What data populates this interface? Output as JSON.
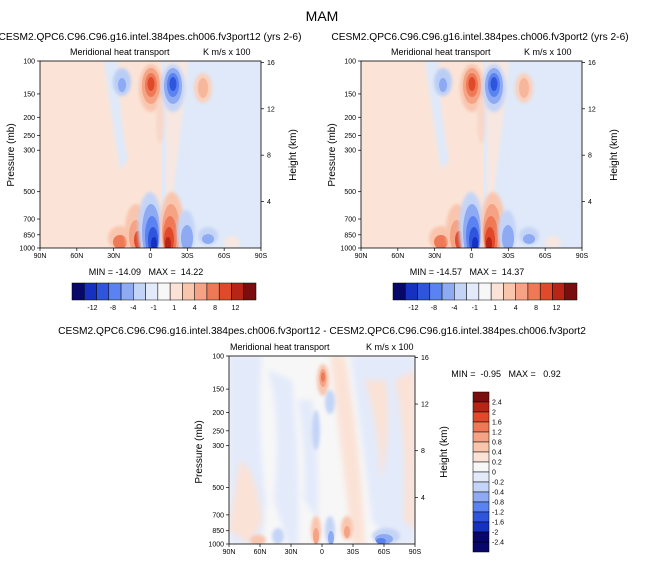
{
  "page": {
    "title": "MAM"
  },
  "panels": [
    {
      "title": "CESM2.QPC6.C96.C96.g16.intel.384pes.ch006.fv3port12 (yrs 2-6)",
      "left_label": "Meridional heat transport",
      "right_label": "K m/s x 100",
      "stats": "MIN = -14.09   MAX =  14.22",
      "label_bar": {
        "ticks": [
          "-12",
          "-8",
          "-4",
          "-1",
          "1",
          "4",
          "8",
          "12"
        ]
      }
    },
    {
      "title": "CESM2.QPC6.C96.C96.g16.intel.384pes.ch006.fv3port2 (yrs 2-6)",
      "left_label": "Meridional heat transport",
      "right_label": "K m/s x 100",
      "stats": "MIN = -14.57   MAX =  14.37",
      "label_bar": {
        "ticks": [
          "-12",
          "-8",
          "-4",
          "-1",
          "1",
          "4",
          "8",
          "12"
        ]
      }
    },
    {
      "title": "CESM2.QPC6.C96.C96.g16.intel.384pes.ch006.fv3port12 - CESM2.QPC6.C96.C96.g16.intel.384pes.ch006.fv3port2",
      "left_label": "Meridional heat transport",
      "right_label": "K m/s x 100",
      "stats": "MIN =  -0.95   MAX =   0.92",
      "label_bar": {
        "ticks": [
          "2.4",
          "2",
          "1.6",
          "1.2",
          "0.8",
          "0.4",
          "0.2",
          "0",
          "-0.2",
          "-0.4",
          "-0.8",
          "-1.2",
          "-1.6",
          "-2",
          "-2.4"
        ]
      }
    }
  ],
  "chart_data": [
    {
      "type": "heatmap",
      "title": "CESM2.QPC6.C96.C96.g16.intel.384pes.ch006.fv3port12 (yrs 2-6)",
      "xlabel": "",
      "ylabel": "Pressure (mb)",
      "y2label": "Height (km)",
      "x_ticks": [
        "90N",
        "60N",
        "30N",
        "0",
        "30S",
        "60S",
        "90S"
      ],
      "y_ticks": [
        100,
        150,
        200,
        250,
        300,
        500,
        700,
        850,
        1000
      ],
      "y2_ticks": [
        16,
        12,
        8,
        4
      ],
      "value_min": -14.09,
      "value_max": 14.22,
      "features": [
        {
          "lat": 6,
          "p": 225,
          "value": -11
        },
        {
          "lat": -6,
          "p": 225,
          "value": 11
        },
        {
          "lat": 20,
          "p": 150,
          "value": -2
        },
        {
          "lat": -20,
          "p": 150,
          "value": 2
        },
        {
          "lat": 5,
          "p": 990,
          "value": -14.09
        },
        {
          "lat": -5,
          "p": 990,
          "value": 14.22
        },
        {
          "lat": 15,
          "p": 950,
          "value": 8
        },
        {
          "lat": -15,
          "p": 950,
          "value": -8
        },
        {
          "lat": 35,
          "p": 970,
          "value": 3
        },
        {
          "lat": -35,
          "p": 970,
          "value": -3
        },
        {
          "lat": -65,
          "p": 990,
          "value": -1.5
        }
      ]
    },
    {
      "type": "heatmap",
      "title": "CESM2.QPC6.C96.C96.g16.intel.384pes.ch006.fv3port2 (yrs 2-6)",
      "xlabel": "",
      "ylabel": "Pressure (mb)",
      "y2label": "Height (km)",
      "x_ticks": [
        "90N",
        "60N",
        "30N",
        "0",
        "30S",
        "60S",
        "90S"
      ],
      "y_ticks": [
        100,
        150,
        200,
        250,
        300,
        500,
        700,
        850,
        1000
      ],
      "y2_ticks": [
        16,
        12,
        8,
        4
      ],
      "value_min": -14.57,
      "value_max": 14.37,
      "features": [
        {
          "lat": 6,
          "p": 225,
          "value": -11
        },
        {
          "lat": -6,
          "p": 225,
          "value": 11
        },
        {
          "lat": 20,
          "p": 150,
          "value": -2
        },
        {
          "lat": -20,
          "p": 150,
          "value": 2
        },
        {
          "lat": 5,
          "p": 990,
          "value": -14.57
        },
        {
          "lat": -5,
          "p": 990,
          "value": 14.37
        },
        {
          "lat": 15,
          "p": 950,
          "value": 8
        },
        {
          "lat": -15,
          "p": 950,
          "value": -8
        },
        {
          "lat": 35,
          "p": 970,
          "value": 3
        },
        {
          "lat": -35,
          "p": 970,
          "value": -3
        },
        {
          "lat": -65,
          "p": 990,
          "value": -1.5
        }
      ]
    },
    {
      "type": "heatmap",
      "title": "CESM2.QPC6.C96.C96.g16.intel.384pes.ch006.fv3port12 - CESM2.QPC6.C96.C96.g16.intel.384pes.ch006.fv3port2",
      "xlabel": "",
      "ylabel": "Pressure (mb)",
      "y2label": "Height (km)",
      "x_ticks": [
        "90N",
        "60N",
        "30N",
        "0",
        "30S",
        "60S",
        "90S"
      ],
      "y_ticks": [
        100,
        150,
        200,
        250,
        300,
        500,
        700,
        850,
        1000
      ],
      "y2_ticks": [
        16,
        12,
        8,
        4
      ],
      "value_min": -0.95,
      "value_max": 0.92,
      "features": [
        {
          "lat": 0,
          "p": 200,
          "value": 0.92
        },
        {
          "lat": 3,
          "p": 250,
          "value": 0.5
        },
        {
          "lat": 5,
          "p": 950,
          "value": 0.5
        },
        {
          "lat": -8,
          "p": 960,
          "value": -0.6
        },
        {
          "lat": -22,
          "p": 940,
          "value": 0.4
        },
        {
          "lat": -60,
          "p": 990,
          "value": -0.95
        },
        {
          "lat": 12,
          "p": 600,
          "value": -0.3
        }
      ]
    }
  ],
  "colors": {
    "palette": [
      "#08086b",
      "#1630c2",
      "#2f55dd",
      "#5a82f0",
      "#8eaaf3",
      "#c4d4f7",
      "#e3eafa",
      "#f7f7f7",
      "#fbe2d6",
      "#f9c5ad",
      "#f5a384",
      "#ef7956",
      "#e04a2a",
      "#b82517",
      "#7a0d0d"
    ]
  }
}
